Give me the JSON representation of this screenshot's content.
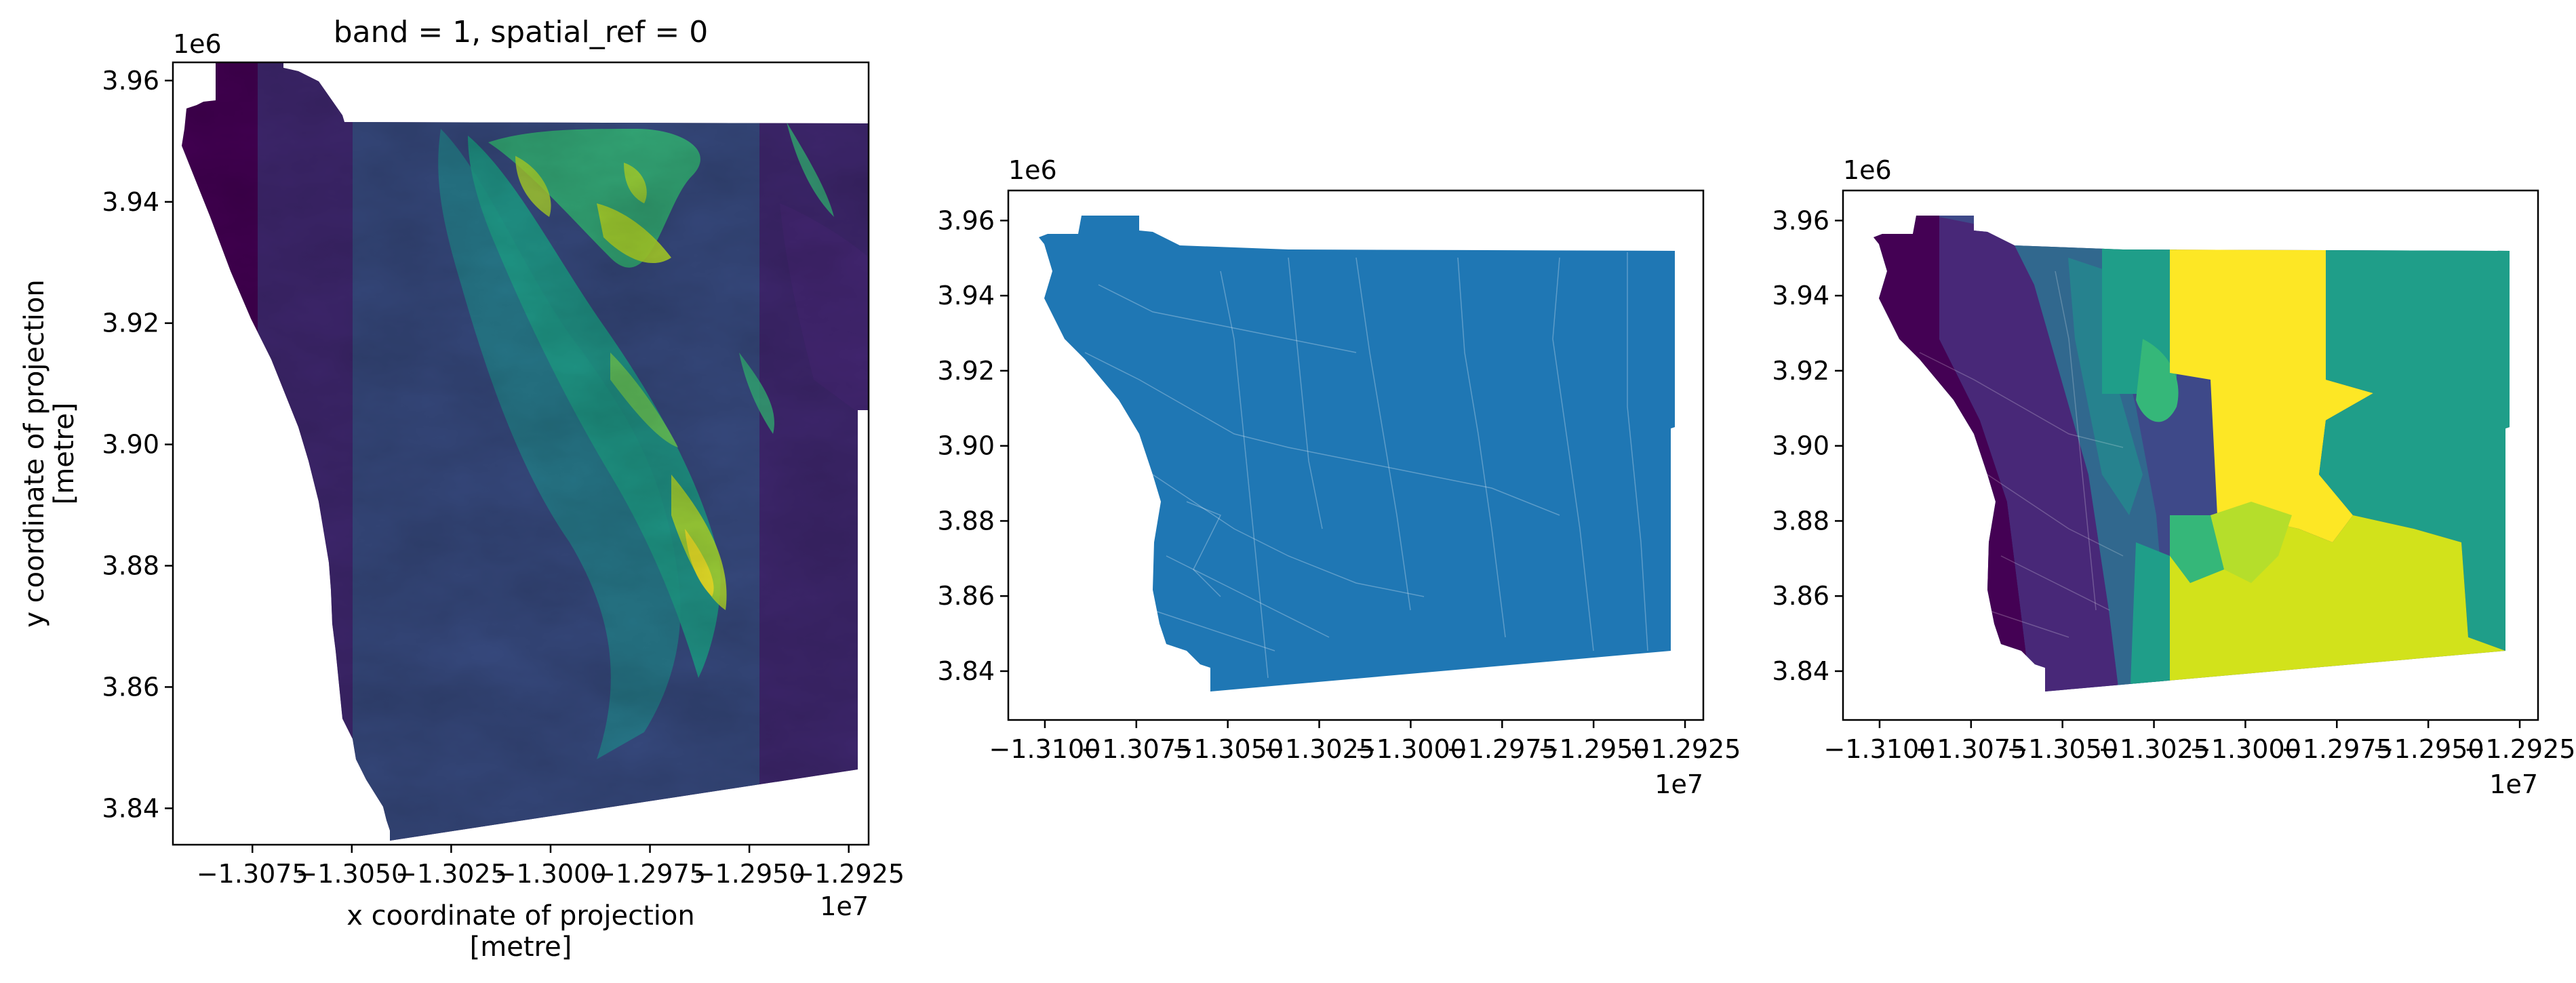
{
  "figure": {
    "panel1": {
      "title": "band = 1, spatial_ref = 0",
      "x_offset": "1e7",
      "y_offset": "1e6",
      "xlabel_line1": "x coordinate of projection",
      "xlabel_line2": "[metre]",
      "ylabel_line1": "y coordinate of projection",
      "ylabel_line2": "[metre]"
    },
    "panel2": {
      "x_offset": "1e7",
      "y_offset": "1e6"
    },
    "panel3": {
      "x_offset": "1e7",
      "y_offset": "1e6"
    }
  },
  "colors": {
    "viridis": [
      "#440154",
      "#482878",
      "#3e4989",
      "#31688e",
      "#26828e",
      "#1f9e89",
      "#35b779",
      "#6ece58",
      "#b5de2b",
      "#fde725"
    ],
    "panel2_fill": "#1f77b4",
    "axis": "#000000"
  },
  "chart_data": [
    {
      "type": "heatmap",
      "title": "band = 1, spatial_ref = 0",
      "description_values": "elevation raster of San Diego county region, viridis colormap (low = purple, high = yellow)",
      "xlabel": "x coordinate of projection [metre]",
      "ylabel": "y coordinate of projection [metre]",
      "xlim": [
        -1.3095,
        -1.292
      ],
      "ylim": [
        3.834,
        3.963
      ],
      "x_scale_label": "1e7",
      "y_scale_label": "1e6",
      "xticks": [
        -1.3075,
        -1.305,
        -1.3025,
        -1.3,
        -1.2975,
        -1.295,
        -1.2925
      ],
      "xtick_labels": [
        "−1.3075",
        "−1.3050",
        "−1.3025",
        "−1.3000",
        "−1.2975",
        "−1.2950",
        "−1.2925"
      ],
      "yticks": [
        3.84,
        3.86,
        3.88,
        3.9,
        3.92,
        3.94,
        3.96
      ],
      "ytick_labels": [
        "3.84",
        "3.86",
        "3.88",
        "3.90",
        "3.92",
        "3.94",
        "3.96"
      ],
      "colormap": "viridis",
      "grid": false
    },
    {
      "type": "map",
      "description_values": "census tract polygons filled uniformly with a single color",
      "xlim": [
        -1.311,
        -1.292
      ],
      "ylim": [
        3.827,
        3.968
      ],
      "x_scale_label": "1e7",
      "y_scale_label": "1e6",
      "xticks": [
        -1.31,
        -1.3075,
        -1.305,
        -1.3025,
        -1.3,
        -1.2975,
        -1.295,
        -1.2925
      ],
      "xtick_labels": [
        "−1.3100",
        "−1.3075",
        "−1.3050",
        "−1.3025",
        "−1.3000",
        "−1.2975",
        "−1.2950",
        "−1.2925"
      ],
      "yticks": [
        3.84,
        3.86,
        3.88,
        3.9,
        3.92,
        3.94,
        3.96
      ],
      "ytick_labels": [
        "3.84",
        "3.86",
        "3.88",
        "3.90",
        "3.92",
        "3.94",
        "3.96"
      ],
      "fill": "#1f77b4",
      "grid": false
    },
    {
      "type": "map",
      "description_values": "census tract polygons colored by a value with viridis colormap (purple on coast, yellow/green inland)",
      "xlim": [
        -1.311,
        -1.292
      ],
      "ylim": [
        3.827,
        3.968
      ],
      "x_scale_label": "1e7",
      "y_scale_label": "1e6",
      "xticks": [
        -1.31,
        -1.3075,
        -1.305,
        -1.3025,
        -1.3,
        -1.2975,
        -1.295,
        -1.2925
      ],
      "xtick_labels": [
        "−1.3100",
        "−1.3075",
        "−1.3050",
        "−1.3025",
        "−1.3000",
        "−1.2975",
        "−1.2950",
        "−1.2925"
      ],
      "yticks": [
        3.84,
        3.86,
        3.88,
        3.9,
        3.92,
        3.94,
        3.96
      ],
      "ytick_labels": [
        "3.84",
        "3.86",
        "3.88",
        "3.90",
        "3.92",
        "3.94",
        "3.96"
      ],
      "colormap": "viridis",
      "grid": false
    }
  ]
}
